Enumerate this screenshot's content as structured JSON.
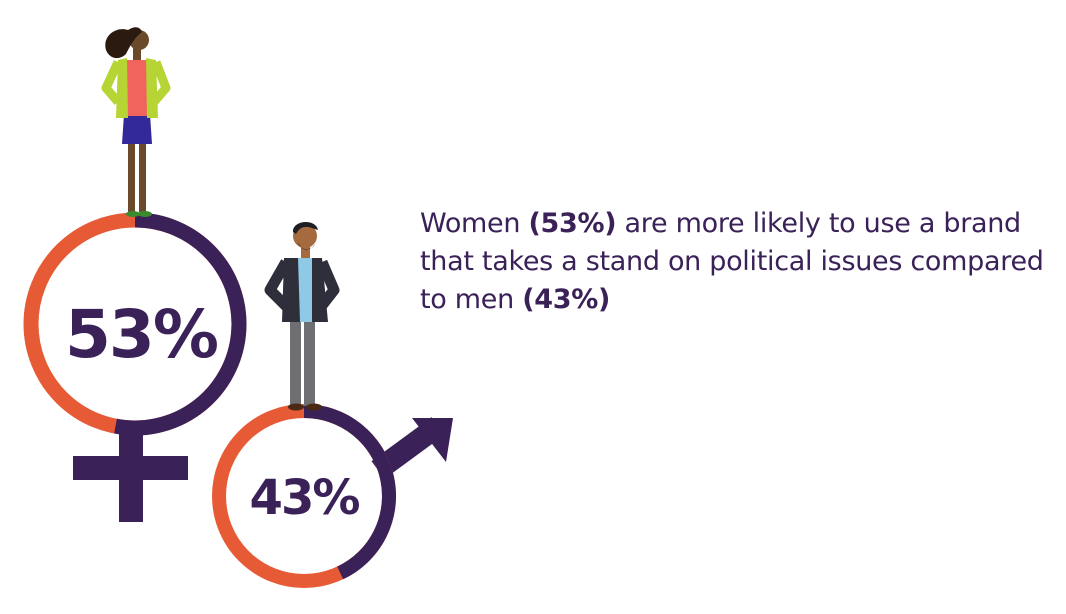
{
  "colors": {
    "purple": "#3a2158",
    "orange": "#e75a36",
    "woman_cardigan": "#b6d433",
    "woman_shirt": "#f0645d",
    "woman_skirt": "#33299a",
    "man_jacket": "#2f2f3b",
    "man_shirt": "#8ec9e6",
    "man_pants": "#6f6f73"
  },
  "icons": [
    "female-symbol-icon",
    "male-symbol-icon",
    "woman-figure",
    "man-figure"
  ],
  "chart_data": {
    "type": "pie",
    "categories": [
      "Women",
      "Men"
    ],
    "values": [
      53,
      43
    ],
    "labels": [
      "53%",
      "43%"
    ],
    "unit": "%"
  },
  "statement": {
    "part1": "Women ",
    "women_value": "(53%)",
    "part2": " are more likely to use a brand that takes a stand on political issues compared to men ",
    "men_value": "(43%)"
  }
}
